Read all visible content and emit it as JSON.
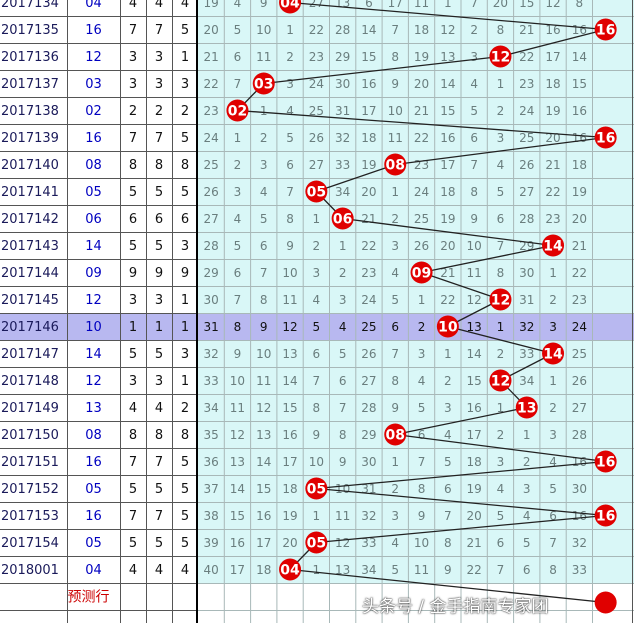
{
  "chart_data": {
    "type": "table",
    "title": "",
    "footer_label": "预测行",
    "highlight_row": "2017146",
    "rows": [
      {
        "period": "2017134",
        "value": "04",
        "d1": 4,
        "d2": 4,
        "d3": 4,
        "cells": [
          19,
          4,
          9,
          4,
          27,
          13,
          6,
          17,
          11,
          1,
          7,
          20,
          15,
          12,
          8
        ],
        "ball": 4
      },
      {
        "period": "2017135",
        "value": "16",
        "d1": 7,
        "d2": 7,
        "d3": 5,
        "cells": [
          20,
          5,
          10,
          1,
          22,
          28,
          14,
          7,
          18,
          12,
          2,
          8,
          21,
          16,
          16
        ],
        "ball": 16
      },
      {
        "period": "2017136",
        "value": "12",
        "d1": 3,
        "d2": 3,
        "d3": 1,
        "cells": [
          21,
          6,
          11,
          2,
          23,
          29,
          15,
          8,
          19,
          13,
          3,
          12,
          22,
          17,
          14
        ],
        "ball": 12
      },
      {
        "period": "2017137",
        "value": "03",
        "d1": 3,
        "d2": 3,
        "d3": 3,
        "cells": [
          22,
          7,
          3,
          3,
          24,
          30,
          16,
          9,
          20,
          14,
          4,
          1,
          23,
          18,
          15
        ],
        "ball": 3
      },
      {
        "period": "2017138",
        "value": "02",
        "d1": 2,
        "d2": 2,
        "d3": 2,
        "cells": [
          23,
          2,
          1,
          4,
          25,
          31,
          17,
          10,
          21,
          15,
          5,
          2,
          24,
          19,
          16
        ],
        "ball": 2
      },
      {
        "period": "2017139",
        "value": "16",
        "d1": 7,
        "d2": 7,
        "d3": 5,
        "cells": [
          24,
          1,
          2,
          5,
          26,
          32,
          18,
          11,
          22,
          16,
          6,
          3,
          25,
          20,
          16
        ],
        "ball": 16
      },
      {
        "period": "2017140",
        "value": "08",
        "d1": 8,
        "d2": 8,
        "d3": 8,
        "cells": [
          25,
          2,
          3,
          6,
          27,
          33,
          19,
          8,
          23,
          17,
          7,
          4,
          26,
          21,
          18
        ],
        "ball": 8
      },
      {
        "period": "2017141",
        "value": "05",
        "d1": 5,
        "d2": 5,
        "d3": 5,
        "cells": [
          26,
          3,
          4,
          7,
          5,
          34,
          20,
          1,
          24,
          18,
          8,
          5,
          27,
          22,
          19
        ],
        "ball": 5
      },
      {
        "period": "2017142",
        "value": "06",
        "d1": 6,
        "d2": 6,
        "d3": 6,
        "cells": [
          27,
          4,
          5,
          8,
          1,
          6,
          21,
          2,
          25,
          19,
          9,
          6,
          28,
          23,
          20
        ],
        "ball": 6
      },
      {
        "period": "2017143",
        "value": "14",
        "d1": 5,
        "d2": 5,
        "d3": 3,
        "cells": [
          28,
          5,
          6,
          9,
          2,
          1,
          22,
          3,
          26,
          20,
          10,
          7,
          29,
          14,
          21
        ],
        "ball": 14
      },
      {
        "period": "2017144",
        "value": "09",
        "d1": 9,
        "d2": 9,
        "d3": 9,
        "cells": [
          29,
          6,
          7,
          10,
          3,
          2,
          23,
          4,
          9,
          21,
          11,
          8,
          30,
          1,
          22
        ],
        "ball": 9
      },
      {
        "period": "2017145",
        "value": "12",
        "d1": 3,
        "d2": 3,
        "d3": 1,
        "cells": [
          30,
          7,
          8,
          11,
          4,
          3,
          24,
          5,
          1,
          22,
          12,
          9,
          31,
          2,
          23
        ],
        "ball": 12
      },
      {
        "period": "2017146",
        "value": "10",
        "d1": 1,
        "d2": 1,
        "d3": 1,
        "cells": [
          31,
          8,
          9,
          12,
          5,
          4,
          25,
          6,
          2,
          10,
          13,
          1,
          32,
          3,
          24
        ],
        "ball": 10
      },
      {
        "period": "2017147",
        "value": "14",
        "d1": 5,
        "d2": 5,
        "d3": 3,
        "cells": [
          32,
          9,
          10,
          13,
          6,
          5,
          26,
          7,
          3,
          1,
          14,
          2,
          33,
          14,
          25
        ],
        "ball": 14
      },
      {
        "period": "2017148",
        "value": "12",
        "d1": 3,
        "d2": 3,
        "d3": 1,
        "cells": [
          33,
          10,
          11,
          14,
          7,
          6,
          27,
          8,
          4,
          2,
          15,
          12,
          34,
          1,
          26
        ],
        "ball": 12
      },
      {
        "period": "2017149",
        "value": "13",
        "d1": 4,
        "d2": 4,
        "d3": 2,
        "cells": [
          34,
          11,
          12,
          15,
          8,
          7,
          28,
          9,
          5,
          3,
          16,
          1,
          13,
          2,
          27
        ],
        "ball": 13
      },
      {
        "period": "2017150",
        "value": "08",
        "d1": 8,
        "d2": 8,
        "d3": 8,
        "cells": [
          35,
          12,
          13,
          16,
          9,
          8,
          29,
          8,
          6,
          4,
          17,
          2,
          1,
          3,
          28
        ],
        "ball": 8
      },
      {
        "period": "2017151",
        "value": "16",
        "d1": 7,
        "d2": 7,
        "d3": 5,
        "cells": [
          36,
          13,
          14,
          17,
          10,
          9,
          30,
          1,
          7,
          5,
          18,
          3,
          2,
          4,
          16
        ],
        "ball": 16
      },
      {
        "period": "2017152",
        "value": "05",
        "d1": 5,
        "d2": 5,
        "d3": 5,
        "cells": [
          37,
          14,
          15,
          18,
          5,
          10,
          31,
          2,
          8,
          6,
          19,
          4,
          3,
          5,
          30
        ],
        "ball": 5
      },
      {
        "period": "2017153",
        "value": "16",
        "d1": 7,
        "d2": 7,
        "d3": 5,
        "cells": [
          38,
          15,
          16,
          19,
          1,
          11,
          32,
          3,
          9,
          7,
          20,
          5,
          4,
          6,
          16
        ],
        "ball": 16
      },
      {
        "period": "2017154",
        "value": "05",
        "d1": 5,
        "d2": 5,
        "d3": 5,
        "cells": [
          39,
          16,
          17,
          20,
          5,
          12,
          33,
          4,
          10,
          8,
          21,
          6,
          5,
          7,
          32
        ],
        "ball": 5
      },
      {
        "period": "2018001",
        "value": "04",
        "d1": 4,
        "d2": 4,
        "d3": 4,
        "cells": [
          40,
          17,
          18,
          4,
          1,
          13,
          34,
          5,
          11,
          9,
          22,
          7,
          6,
          8,
          33
        ],
        "ball": 4
      }
    ],
    "prediction_ball": 16,
    "watermark": "头条号 / 金手指南专家团"
  }
}
